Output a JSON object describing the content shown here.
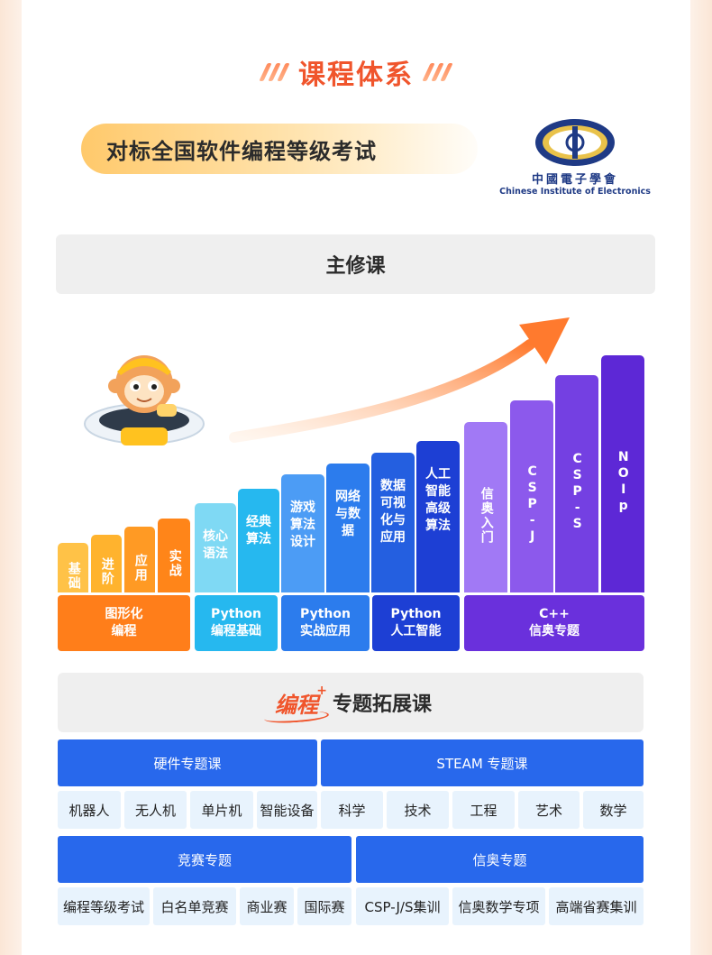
{
  "title": "课程体系",
  "subtitle": "对标全国软件编程等级考试",
  "logo": {
    "cn": "中國電子學會",
    "en": "Chinese Institute of Electronics"
  },
  "main_course": {
    "label": "主修课"
  },
  "steps": [
    {
      "label": "基础",
      "color": "#ffc247"
    },
    {
      "label": "进阶",
      "color": "#ffb32e"
    },
    {
      "label": "应用",
      "color": "#ff9a24"
    },
    {
      "label": "实战",
      "color": "#ff8519"
    },
    {
      "label": "核心语法",
      "color": "#7fd9f4"
    },
    {
      "label": "经典算法",
      "color": "#26b8ef"
    },
    {
      "label": "游戏算法设计",
      "color": "#4c9cf5"
    },
    {
      "label": "网络与数据",
      "color": "#2c7ced"
    },
    {
      "label": "数据可视化与应用",
      "color": "#245fe0"
    },
    {
      "label": "人工智能高级算法",
      "color": "#1d3fd4"
    },
    {
      "label": "信奥入门",
      "color": "#a179f5"
    },
    {
      "label": "CSP-J",
      "color": "#8c59ec"
    },
    {
      "label": "CSP-S",
      "color": "#7440e2"
    },
    {
      "label": "NOIp",
      "color": "#5d28d6"
    }
  ],
  "groups": [
    {
      "line1": "图形化",
      "line2": "编程",
      "color": "#ff7e1a"
    },
    {
      "line1": "Python",
      "line2": "编程基础",
      "color": "#26b8ef"
    },
    {
      "line1": "Python",
      "line2": "实战应用",
      "color": "#2c7ced"
    },
    {
      "line1": "Python",
      "line2": "人工智能",
      "color": "#1d3fd4"
    },
    {
      "line1": "C++",
      "line2": "信奥专题",
      "color": "#6a30dc"
    }
  ],
  "topic": {
    "badge": "编程",
    "badge_plus": "+",
    "label": "专题拓展课"
  },
  "hardware": {
    "title": "硬件专题课",
    "items": [
      "机器人",
      "无人机",
      "单片机",
      "智能设备"
    ]
  },
  "steam": {
    "title": "STEAM 专题课",
    "items": [
      "科学",
      "技术",
      "工程",
      "艺术",
      "数学"
    ]
  },
  "contest": {
    "title": "竞赛专题",
    "items": [
      "编程等级考试",
      "白名单竞赛",
      "商业赛",
      "国际赛"
    ]
  },
  "olympiad": {
    "title": "信奥专题",
    "items": [
      "CSP-J/S集训",
      "信奥数学专项",
      "高端省赛集训"
    ]
  }
}
